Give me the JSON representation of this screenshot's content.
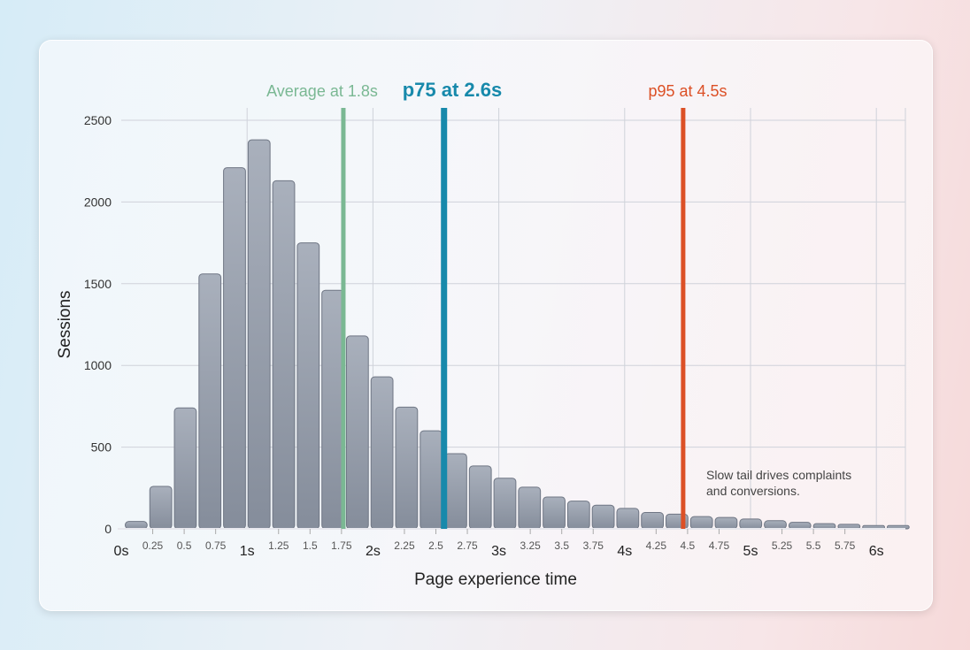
{
  "chart_data": {
    "type": "bar",
    "title": "",
    "xlabel": "Page experience time",
    "ylabel": "Sessions",
    "x_range": [
      0,
      6.25
    ],
    "ylim": [
      0,
      2500
    ],
    "yticks": [
      0,
      500,
      1000,
      1500,
      2000,
      2500
    ],
    "ytick_labels": [
      "0",
      "500",
      "1000",
      "1500",
      "2000",
      "2500"
    ],
    "xticks_major": [
      0,
      1,
      2,
      3,
      4,
      5,
      6
    ],
    "xtick_major_labels": [
      "0s",
      "1s",
      "2s",
      "3s",
      "4s",
      "5s",
      "6s"
    ],
    "xticks_minor": [
      0.25,
      0.5,
      0.75,
      1.25,
      1.5,
      1.75,
      2.25,
      2.5,
      2.75,
      3.25,
      3.5,
      3.75,
      4.25,
      4.5,
      4.75,
      5.25,
      5.5,
      5.75
    ],
    "xtick_minor_labels": [
      "0.25",
      "0.5",
      "0.75",
      "1.25",
      "1.5",
      "1.75",
      "2.25",
      "2.5",
      "2.75",
      "3.25",
      "3.5",
      "3.75",
      "4.25",
      "4.5",
      "4.75",
      "5.25",
      "5.5",
      "5.75"
    ],
    "grid": true,
    "values": [
      45,
      260,
      740,
      1560,
      2210,
      2380,
      2130,
      1750,
      1460,
      1180,
      930,
      745,
      600,
      460,
      385,
      310,
      255,
      195,
      170,
      145,
      125,
      100,
      90,
      75,
      70,
      60,
      50,
      40,
      32,
      28,
      20,
      20
    ],
    "bar_color": "#929aa8",
    "markers": [
      {
        "label": "Average at 1.8s",
        "x": 1.8,
        "color": "#7ab893",
        "bold": false
      },
      {
        "label": "p75 at 2.6s",
        "x": 2.6,
        "color": "#1789ab",
        "bold": true
      },
      {
        "label": "p95 at 4.5s",
        "x": 4.5,
        "color": "#dc5026",
        "bold": false
      }
    ],
    "annotation": [
      "Slow tail drives complaints",
      "and conversions."
    ]
  }
}
